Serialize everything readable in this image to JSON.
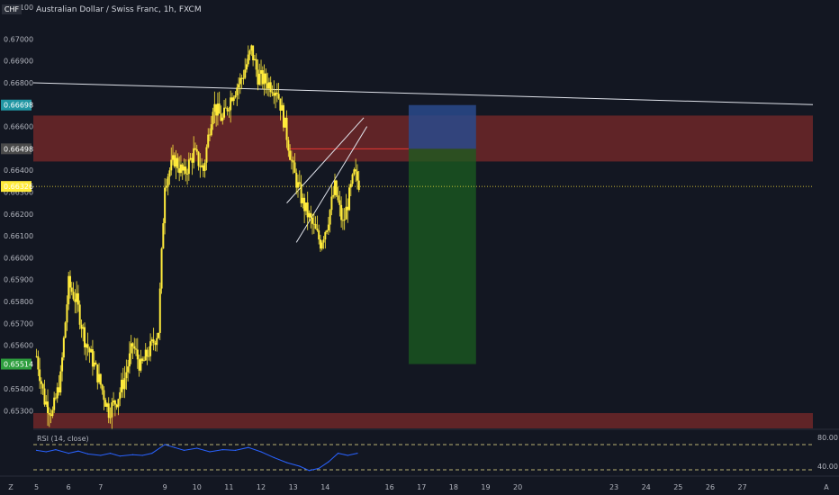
{
  "header": {
    "currency_badge": "CHF",
    "title": "Australian Dollar / Swiss Franc, 1h, FXCM",
    "top_axis_partial": "0.67100"
  },
  "colors": {
    "background": "#131722",
    "candle": "#ffeb3b",
    "rsi_line": "#2962ff",
    "rsi_band": "#f0e68c",
    "zone_red": "#7b2a2a",
    "target_green": "#1b5e20",
    "stop_blue": "#2a4a8c",
    "trendline": "#e0e3eb"
  },
  "chart_data": [
    {
      "type": "candlestick",
      "title": "Australian Dollar / Swiss Franc, 1h, FXCM",
      "ylim": [
        0.6522,
        0.6717
      ],
      "y_ticks": [
        "0.67000",
        "0.66900",
        "0.66800",
        "0.66600",
        "0.66400",
        "0.66300",
        "0.66200",
        "0.66100",
        "0.66000",
        "0.65900",
        "0.65800",
        "0.65700",
        "0.65600",
        "0.65400",
        "0.65300"
      ],
      "x_ticks": [
        "5",
        "6",
        "7",
        "9",
        "10",
        "11",
        "12",
        "13",
        "14",
        "16",
        "17",
        "18",
        "19",
        "20",
        "23",
        "24",
        "25",
        "26",
        "27"
      ],
      "x_tick_positions": [
        5,
        6,
        7,
        9,
        10,
        11,
        12,
        13,
        14,
        16,
        17,
        18,
        19,
        20,
        23,
        24,
        25,
        26,
        27
      ],
      "xlim": [
        4.9,
        29.2
      ],
      "price_tags": [
        {
          "label": "0.66698",
          "value": 0.66698,
          "color": "#2196a3"
        },
        {
          "label": "0.66498",
          "value": 0.66498,
          "color": "#4a4a4a"
        },
        {
          "label": "0.66326",
          "value": 0.66326,
          "color": "#ffeb3b"
        },
        {
          "label": "0.65514",
          "value": 0.65514,
          "color": "#2e9e3e"
        }
      ],
      "current_price": 0.66326,
      "zones": [
        {
          "name": "resistance",
          "from": 0.6644,
          "to": 0.6665
        },
        {
          "name": "support",
          "from": 0.6522,
          "to": 0.6529
        }
      ],
      "position": {
        "x_start": 16.6,
        "x_end": 18.7,
        "entry": 0.66498,
        "stop": 0.66698,
        "target": 0.65514
      },
      "trendlines": [
        {
          "points": [
            [
              4.9,
              0.668
            ],
            [
              29.2,
              0.667
            ]
          ]
        },
        {
          "points": [
            [
              12.8,
              0.6625
            ],
            [
              15.2,
              0.6664
            ]
          ]
        },
        {
          "points": [
            [
              13.1,
              0.6607
            ],
            [
              15.3,
              0.666
            ]
          ]
        }
      ],
      "waypoints": [
        [
          5.0,
          0.6555
        ],
        [
          5.25,
          0.6535
        ],
        [
          5.5,
          0.6529
        ],
        [
          5.75,
          0.6545
        ],
        [
          6.0,
          0.6588
        ],
        [
          6.25,
          0.658
        ],
        [
          6.5,
          0.6563
        ],
        [
          6.75,
          0.6553
        ],
        [
          7.0,
          0.6542
        ],
        [
          7.25,
          0.653
        ],
        [
          7.5,
          0.6535
        ],
        [
          7.75,
          0.6545
        ],
        [
          8.0,
          0.656
        ],
        [
          8.25,
          0.655
        ],
        [
          8.6,
          0.656
        ],
        [
          8.8,
          0.6567
        ],
        [
          9.0,
          0.6635
        ],
        [
          9.3,
          0.6645
        ],
        [
          9.6,
          0.6638
        ],
        [
          9.9,
          0.6648
        ],
        [
          10.2,
          0.664
        ],
        [
          10.5,
          0.667
        ],
        [
          10.8,
          0.6663
        ],
        [
          11.1,
          0.6675
        ],
        [
          11.4,
          0.6682
        ],
        [
          11.7,
          0.6695
        ],
        [
          11.9,
          0.6683
        ],
        [
          12.2,
          0.668
        ],
        [
          12.5,
          0.6677
        ],
        [
          12.75,
          0.666
        ],
        [
          13.0,
          0.664
        ],
        [
          13.3,
          0.6625
        ],
        [
          13.6,
          0.6615
        ],
        [
          13.85,
          0.6607
        ],
        [
          14.05,
          0.6615
        ],
        [
          14.3,
          0.6632
        ],
        [
          14.55,
          0.6615
        ],
        [
          14.7,
          0.6625
        ],
        [
          14.9,
          0.6638
        ],
        [
          15.1,
          0.6633
        ]
      ]
    },
    {
      "type": "line",
      "title": "RSI (14, close)",
      "ylim": [
        30,
        90
      ],
      "y_ticks": [
        "80.00",
        "40.00"
      ],
      "bands": [
        70,
        35
      ],
      "series": [
        {
          "name": "RSI (14, close)",
          "x": [
            5.0,
            5.3,
            5.6,
            6.0,
            6.3,
            6.6,
            7.0,
            7.3,
            7.6,
            8.0,
            8.3,
            8.6,
            9.0,
            9.3,
            9.6,
            10.0,
            10.4,
            10.8,
            11.2,
            11.6,
            12.0,
            12.4,
            12.8,
            13.2,
            13.5,
            13.8,
            14.1,
            14.4,
            14.7,
            15.0
          ],
          "values": [
            62,
            60,
            63,
            58,
            61,
            57,
            55,
            58,
            54,
            56,
            55,
            58,
            70,
            66,
            62,
            65,
            60,
            63,
            62,
            66,
            60,
            52,
            45,
            40,
            34,
            37,
            46,
            58,
            55,
            58
          ]
        }
      ]
    }
  ],
  "footer": {
    "left_label": "Z",
    "right_label": "A"
  }
}
